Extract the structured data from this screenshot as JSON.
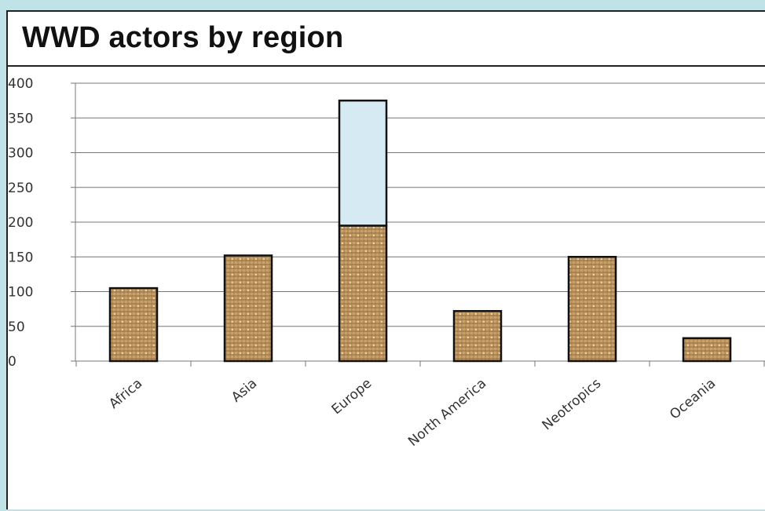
{
  "title": "WWD actors by region",
  "colors": {
    "bar_fill": "#c8a06a",
    "bar_texture": "#8a6438",
    "upper_segment": "#d6eaf3",
    "bar_stroke": "#111111",
    "grid": "#777777"
  },
  "chart_data": {
    "type": "bar",
    "stacked": true,
    "categories": [
      "Africa",
      "Asia",
      "Europe",
      "North America",
      "Neotropics",
      "Oceania"
    ],
    "series": [
      {
        "values": [
          105,
          152,
          195,
          72,
          150,
          33
        ]
      },
      {
        "values": [
          0,
          0,
          180,
          0,
          0,
          0
        ]
      }
    ],
    "yticks": [
      "0",
      "50",
      "100",
      "150",
      "200",
      "250",
      "300",
      "350",
      "400"
    ],
    "ylim": [
      0,
      400
    ],
    "grid": true,
    "legend": "none"
  }
}
